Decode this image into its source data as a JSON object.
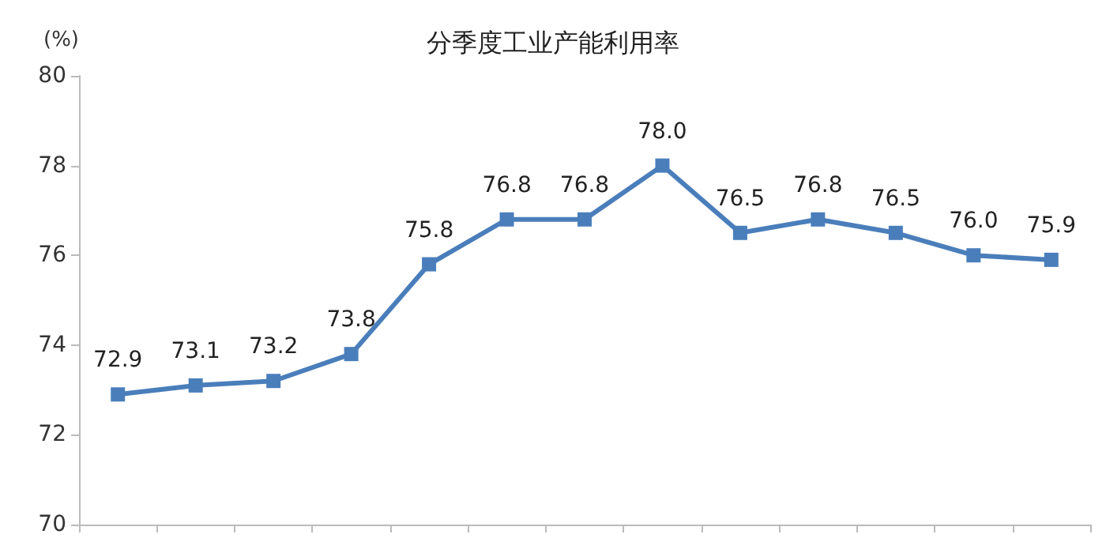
{
  "chart_data": {
    "type": "line",
    "title": "分季度工业产能利用率",
    "ylabel": "(%)",
    "categories": [
      null,
      null,
      null,
      null,
      null,
      null,
      null,
      null,
      null,
      null,
      null,
      null,
      null
    ],
    "series": [
      {
        "color": "#4a7ebb",
        "values": [
          72.9,
          73.1,
          73.2,
          73.8,
          75.8,
          76.8,
          76.8,
          78.0,
          76.5,
          76.8,
          76.5,
          76.0,
          75.9
        ],
        "value_labels": [
          "72.9",
          "73.1",
          "73.2",
          "73.8",
          "75.8",
          "76.8",
          "76.8",
          "78.0",
          "76.5",
          "76.8",
          "76.5",
          "76.0",
          "75.9"
        ]
      }
    ],
    "ylim": [
      70,
      80
    ],
    "yticks": [
      70,
      72,
      74,
      76,
      78,
      80
    ],
    "grid": false,
    "marker": "square",
    "line_style": "solid"
  }
}
